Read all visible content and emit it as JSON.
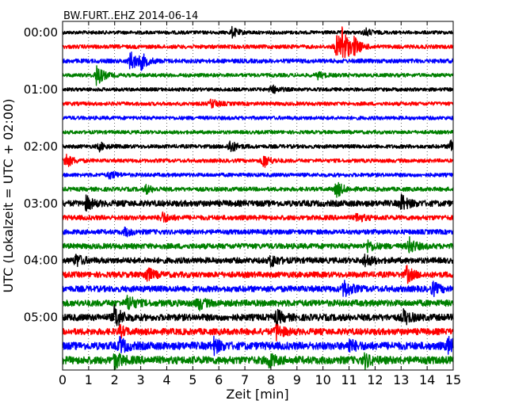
{
  "chart_data": {
    "type": "line",
    "title": "BW.FURT..EHZ 2014-06-14",
    "xlabel": "Zeit  [min]",
    "ylabel": "UTC (Lokalzeit = UTC + 02:00)",
    "xlim": [
      0,
      15
    ],
    "x_ticks": [
      "0",
      "1",
      "2",
      "3",
      "4",
      "5",
      "6",
      "7",
      "8",
      "9",
      "10",
      "11",
      "12",
      "13",
      "14",
      "15"
    ],
    "y_ticks": [
      "00:00",
      "01:00",
      "02:00",
      "03:00",
      "04:00",
      "05:00"
    ],
    "grid": "dotted vertical",
    "trace_interval_minutes": 15,
    "trace_colors": [
      "#000000",
      "#ff0000",
      "#0000ff",
      "#008000"
    ],
    "traces": [
      {
        "start": "00:00",
        "color": "#000000",
        "amplitude": 2.2,
        "events": [
          {
            "x": 6.5,
            "amp": 6
          },
          {
            "x": 11.6,
            "amp": 5
          }
        ]
      },
      {
        "start": "00:15",
        "color": "#ff0000",
        "amplitude": 2.4,
        "events": [
          {
            "x": 10.5,
            "amp": 14
          },
          {
            "x": 10.7,
            "amp": 28
          },
          {
            "x": 11.2,
            "amp": 9
          }
        ]
      },
      {
        "start": "00:30",
        "color": "#0000ff",
        "amplitude": 2.6,
        "events": [
          {
            "x": 2.6,
            "amp": 13
          },
          {
            "x": 3.0,
            "amp": 9
          }
        ]
      },
      {
        "start": "00:45",
        "color": "#008000",
        "amplitude": 2.3,
        "events": [
          {
            "x": 1.3,
            "amp": 14
          },
          {
            "x": 9.8,
            "amp": 4
          }
        ]
      },
      {
        "start": "01:00",
        "color": "#000000",
        "amplitude": 2.2,
        "events": [
          {
            "x": 8.0,
            "amp": 6
          }
        ]
      },
      {
        "start": "01:15",
        "color": "#ff0000",
        "amplitude": 2.3,
        "events": [
          {
            "x": 5.7,
            "amp": 6
          }
        ]
      },
      {
        "start": "01:30",
        "color": "#0000ff",
        "amplitude": 2.3,
        "events": []
      },
      {
        "start": "01:45",
        "color": "#008000",
        "amplitude": 2.2,
        "events": []
      },
      {
        "start": "02:00",
        "color": "#000000",
        "amplitude": 2.4,
        "events": [
          {
            "x": 1.4,
            "amp": 5
          },
          {
            "x": 6.4,
            "amp": 9
          },
          {
            "x": 14.9,
            "amp": 10
          }
        ]
      },
      {
        "start": "02:15",
        "color": "#ff0000",
        "amplitude": 2.3,
        "events": [
          {
            "x": 0.1,
            "amp": 10
          },
          {
            "x": 7.7,
            "amp": 9
          }
        ]
      },
      {
        "start": "02:30",
        "color": "#0000ff",
        "amplitude": 2.4,
        "events": [
          {
            "x": 1.8,
            "amp": 5
          }
        ]
      },
      {
        "start": "02:45",
        "color": "#008000",
        "amplitude": 2.6,
        "events": [
          {
            "x": 10.5,
            "amp": 11
          },
          {
            "x": 3.2,
            "amp": 5
          }
        ]
      },
      {
        "start": "03:00",
        "color": "#000000",
        "amplitude": 3.8,
        "events": [
          {
            "x": 0.9,
            "amp": 8
          },
          {
            "x": 13.0,
            "amp": 10
          }
        ]
      },
      {
        "start": "03:15",
        "color": "#ff0000",
        "amplitude": 3.0,
        "events": [
          {
            "x": 3.8,
            "amp": 7
          },
          {
            "x": 11.3,
            "amp": 6
          }
        ]
      },
      {
        "start": "03:30",
        "color": "#0000ff",
        "amplitude": 3.0,
        "events": [
          {
            "x": 2.4,
            "amp": 5
          }
        ]
      },
      {
        "start": "03:45",
        "color": "#008000",
        "amplitude": 3.4,
        "events": [
          {
            "x": 13.3,
            "amp": 10
          },
          {
            "x": 11.7,
            "amp": 7
          }
        ]
      },
      {
        "start": "04:00",
        "color": "#000000",
        "amplitude": 3.6,
        "events": [
          {
            "x": 0.5,
            "amp": 8
          },
          {
            "x": 8.0,
            "amp": 8
          },
          {
            "x": 11.6,
            "amp": 8
          }
        ]
      },
      {
        "start": "04:15",
        "color": "#ff0000",
        "amplitude": 3.6,
        "events": [
          {
            "x": 3.2,
            "amp": 10
          },
          {
            "x": 13.2,
            "amp": 10
          }
        ]
      },
      {
        "start": "04:30",
        "color": "#0000ff",
        "amplitude": 3.8,
        "events": [
          {
            "x": 10.8,
            "amp": 12
          },
          {
            "x": 14.2,
            "amp": 8
          }
        ]
      },
      {
        "start": "04:45",
        "color": "#008000",
        "amplitude": 4.0,
        "events": [
          {
            "x": 2.5,
            "amp": 10
          },
          {
            "x": 5.2,
            "amp": 8
          }
        ]
      },
      {
        "start": "05:00",
        "color": "#000000",
        "amplitude": 4.2,
        "events": [
          {
            "x": 2.0,
            "amp": 16
          },
          {
            "x": 8.2,
            "amp": 9
          },
          {
            "x": 13.1,
            "amp": 9
          }
        ]
      },
      {
        "start": "05:15",
        "color": "#ff0000",
        "amplitude": 4.0,
        "events": [
          {
            "x": 8.2,
            "amp": 10
          },
          {
            "x": 2.2,
            "amp": 6
          }
        ]
      },
      {
        "start": "05:30",
        "color": "#0000ff",
        "amplitude": 4.8,
        "events": [
          {
            "x": 2.2,
            "amp": 9
          },
          {
            "x": 5.8,
            "amp": 9
          },
          {
            "x": 11.0,
            "amp": 8
          },
          {
            "x": 14.8,
            "amp": 10
          }
        ]
      },
      {
        "start": "05:45",
        "color": "#008000",
        "amplitude": 4.8,
        "events": [
          {
            "x": 2.0,
            "amp": 10
          },
          {
            "x": 7.9,
            "amp": 9
          },
          {
            "x": 11.6,
            "amp": 8
          }
        ]
      }
    ]
  }
}
